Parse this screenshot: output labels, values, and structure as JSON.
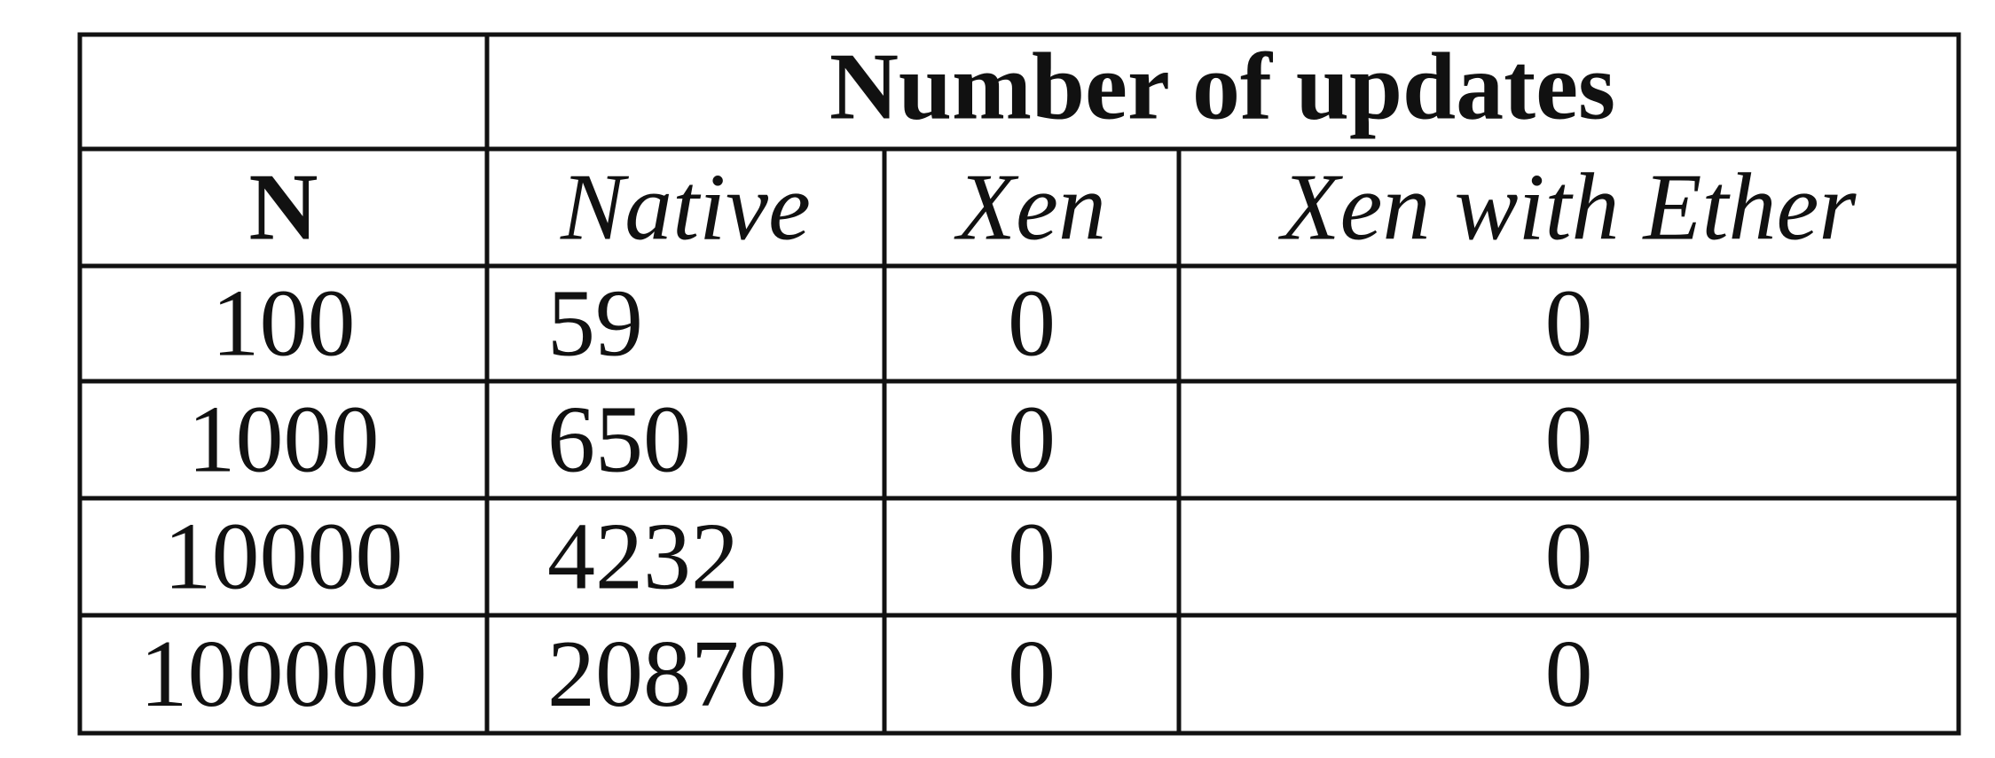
{
  "table": {
    "group_header": "Number of updates",
    "columns": [
      "N",
      "Native",
      "Xen",
      "Xen with Ether"
    ],
    "rows": [
      [
        "100",
        "59",
        "0",
        "0"
      ],
      [
        "1000",
        "650",
        "0",
        "0"
      ],
      [
        "10000",
        "4232",
        "0",
        "0"
      ],
      [
        "100000",
        "20870",
        "0",
        "0"
      ]
    ]
  }
}
